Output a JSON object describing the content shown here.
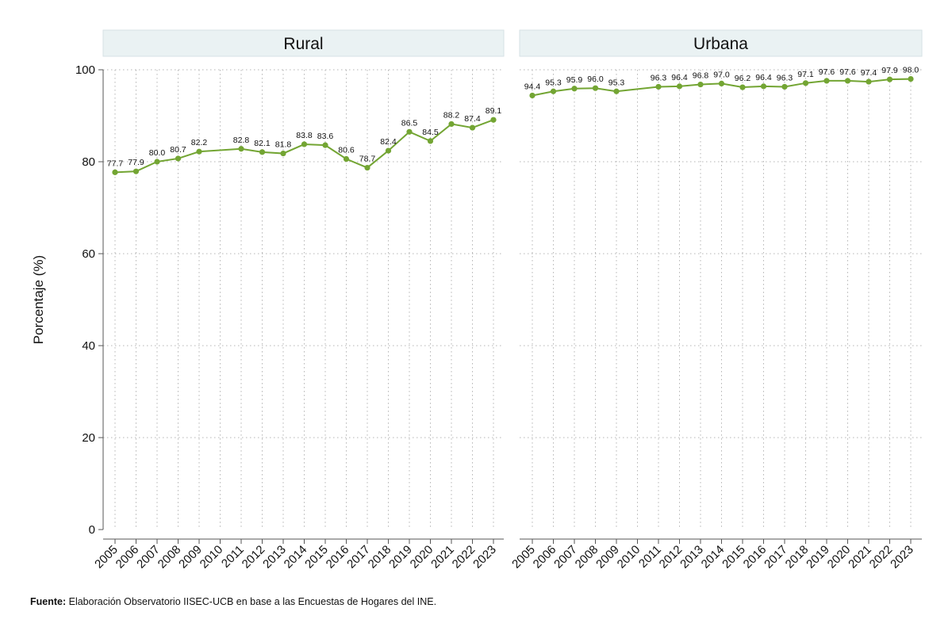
{
  "chart_data": {
    "type": "line",
    "ylabel": "Porcentaje (%)",
    "ylim": [
      0,
      100
    ],
    "yticks": [
      0,
      20,
      40,
      60,
      80,
      100
    ],
    "grid": true,
    "line_color": "#73a533",
    "x": [
      "2005",
      "2006",
      "2007",
      "2008",
      "2009",
      "2010",
      "2011",
      "2012",
      "2013",
      "2014",
      "2015",
      "2016",
      "2017",
      "2018",
      "2019",
      "2020",
      "2021",
      "2022",
      "2023"
    ],
    "panels": [
      {
        "title": "Rural",
        "series": [
          {
            "x": [
              "2005",
              "2006",
              "2007",
              "2008",
              "2009",
              "2011",
              "2012",
              "2013",
              "2014",
              "2015",
              "2016",
              "2017",
              "2018",
              "2019",
              "2020",
              "2021",
              "2022",
              "2023"
            ],
            "values": [
              77.7,
              77.9,
              80.0,
              80.7,
              82.2,
              82.8,
              82.1,
              81.8,
              83.8,
              83.6,
              80.6,
              78.7,
              82.4,
              86.5,
              84.5,
              88.2,
              87.4,
              89.1
            ],
            "labels": [
              "77.7",
              "77.9",
              "80.0",
              "80.7",
              "82.2",
              "82.8",
              "82.1",
              "81.8",
              "83.8",
              "83.6",
              "80.6",
              "78.7",
              "82.4",
              "86.5",
              "84.5",
              "88.2",
              "87.4",
              "89.1"
            ]
          }
        ]
      },
      {
        "title": "Urbana",
        "series": [
          {
            "x": [
              "2005",
              "2006",
              "2007",
              "2008",
              "2009",
              "2011",
              "2012",
              "2013",
              "2014",
              "2015",
              "2016",
              "2017",
              "2018",
              "2019",
              "2020",
              "2021",
              "2022",
              "2023"
            ],
            "values": [
              94.4,
              95.3,
              95.9,
              96.0,
              95.3,
              96.3,
              96.4,
              96.8,
              97.0,
              96.2,
              96.4,
              96.3,
              97.1,
              97.6,
              97.6,
              97.4,
              97.9,
              98.0
            ],
            "labels": [
              "94.4",
              "95.3",
              "95.9",
              "96.0",
              "95.3",
              "96.3",
              "96.4",
              "96.8",
              "97.0",
              "96.2",
              "96.4",
              "96.3",
              "97.1",
              "97.6",
              "97.6",
              "97.4",
              "97.9",
              "98.0"
            ]
          }
        ]
      }
    ]
  },
  "footer": {
    "source_label": "Fuente:",
    "source_text": " Elaboración Observatorio IISEC-UCB en base a las Encuestas de Hogares del INE."
  }
}
